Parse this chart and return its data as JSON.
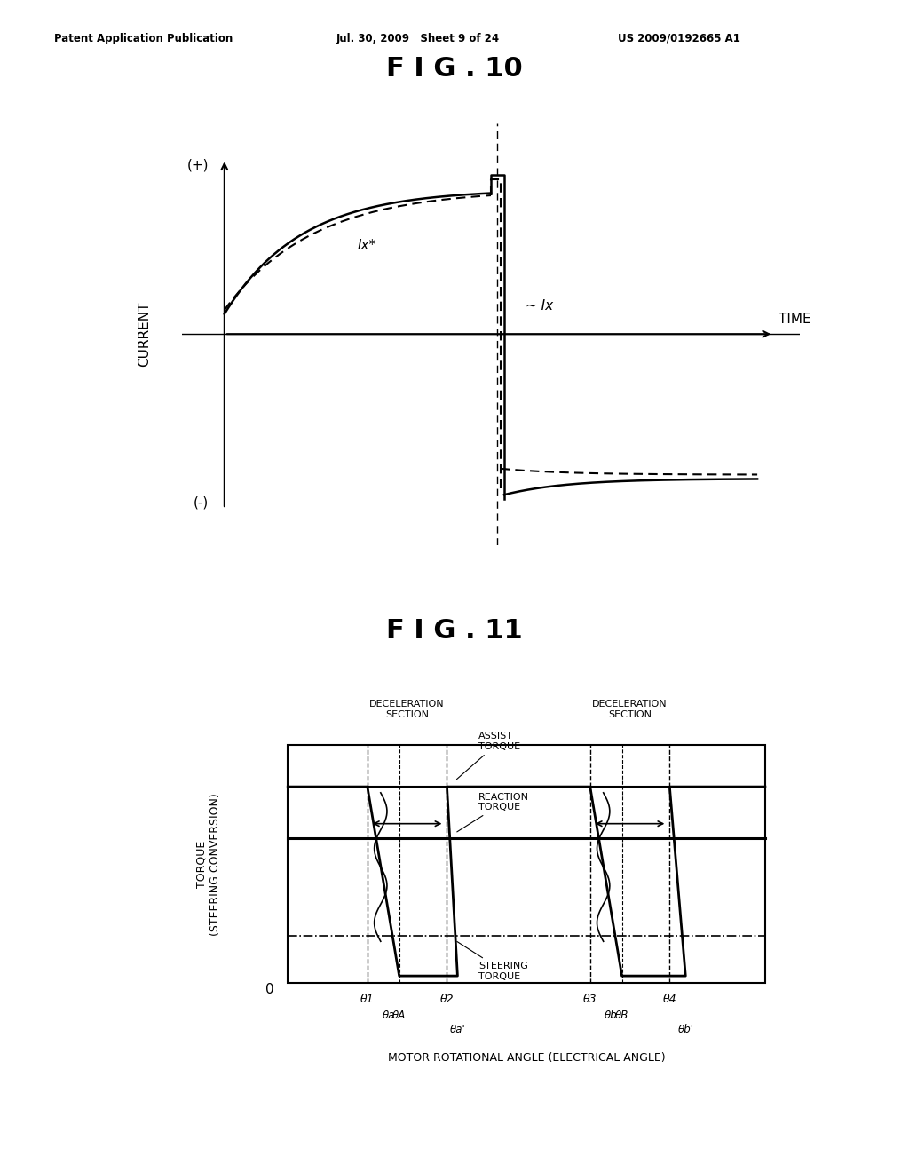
{
  "fig_title": "F I G . 10",
  "fig11_title": "F I G . 11",
  "header_left": "Patent Application Publication",
  "header_mid": "Jul. 30, 2009   Sheet 9 of 24",
  "header_right": "US 2009/0192665 A1",
  "background": "#ffffff",
  "fig10": {
    "ylabel": "CURRENT",
    "xlabel": "TIME",
    "plus_label": "(+)",
    "minus_label": "(-)",
    "ix_star_label": "Ix*",
    "ix_label": "~ Ix"
  },
  "fig11": {
    "ylabel": "TORQUE\n(STEERING CONVERSION)",
    "xlabel": "MOTOR ROTATIONAL ANGLE (ELECTRICAL ANGLE)",
    "decel1_label": "DECELERATION\nSECTION",
    "decel2_label": "DECELERATION\nSECTION",
    "theta1_label": "θ1",
    "theta2_label": "θ2",
    "theta3_label": "θ3",
    "theta4_label": "θ4",
    "theta_a_label": "θa",
    "theta_A_label": "θA",
    "theta_a_prime_label": "θa'",
    "theta_b_label": "θb",
    "theta_B_label": "θB",
    "theta_b_prime_label": "θb'",
    "assist_torque_label": "ASSIST\nTORQUE",
    "reaction_torque_label": "REACTION\nTORQUE",
    "steering_torque_label": "STEERING\nTORQUE",
    "zero_label": "0"
  }
}
